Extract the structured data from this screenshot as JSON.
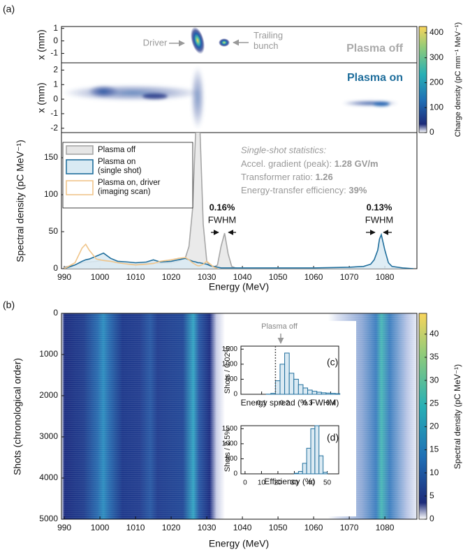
{
  "panel_labels": [
    "(a)",
    "(b)",
    "(c)",
    "(d)"
  ],
  "chart_data": [
    {
      "type": "heatmap",
      "label": "Plasma off",
      "ylabel": "x (mm)",
      "ylim": [
        -1.75,
        1.15
      ],
      "yticks": [
        -1,
        0,
        1
      ],
      "annotations": [
        "Driver",
        "Trailing bunch"
      ],
      "colorbar": {
        "label": "Charge density (pC mm⁻¹ MeV⁻¹)",
        "lim": [
          0,
          425
        ],
        "ticks": [
          0,
          100,
          200,
          300,
          400
        ]
      }
    },
    {
      "type": "heatmap",
      "label": "Plasma on",
      "ylabel": "x (mm)",
      "ylim": [
        -2.3,
        2.5
      ],
      "yticks": [
        -2,
        -1,
        0,
        1,
        2
      ]
    },
    {
      "type": "line",
      "xlabel": "Energy (MeV)",
      "ylabel": "Spectral density (pC MeV⁻¹)",
      "xlim": [
        989.2,
        1089
      ],
      "xticks": [
        990,
        1000,
        1010,
        1020,
        1030,
        1040,
        1050,
        1060,
        1070,
        1080
      ],
      "ylim": [
        0,
        184
      ],
      "yticks": [
        0,
        50,
        100,
        150
      ],
      "legend": "upper left",
      "x": [
        990,
        993,
        995,
        996,
        997,
        999,
        1001,
        1003,
        1005,
        1008,
        1010,
        1013,
        1015,
        1017,
        1020,
        1022,
        1024,
        1025,
        1026,
        1027,
        1027.5,
        1028,
        1029,
        1030,
        1031,
        1032,
        1033,
        1034,
        1035,
        1036,
        1037,
        1038,
        1040,
        1050,
        1060,
        1070,
        1074,
        1076,
        1077,
        1078,
        1078.5,
        1079,
        1080,
        1081,
        1082,
        1085,
        1088
      ],
      "series": [
        {
          "name": "Plasma off",
          "color": "#a6a6a6",
          "fill": "#e6e6e6",
          "values": [
            2,
            5,
            8,
            9,
            9,
            10,
            12,
            10,
            8,
            6,
            6,
            7,
            8,
            7,
            8,
            10,
            15,
            30,
            80,
            200,
            250,
            200,
            60,
            10,
            3,
            2,
            5,
            30,
            48,
            20,
            3,
            1,
            0,
            0,
            0,
            0,
            0,
            0,
            0,
            0,
            0,
            0,
            0,
            0,
            0,
            0,
            0
          ]
        },
        {
          "name": "Plasma on (single shot)",
          "color": "#1f6e9c",
          "fill": "#d9eaf3",
          "values": [
            0,
            5,
            10,
            12,
            13,
            17,
            21,
            14,
            10,
            9,
            8,
            9,
            12,
            9,
            10,
            12,
            14,
            12,
            10,
            9,
            8,
            8,
            7,
            6,
            4,
            3,
            2,
            1,
            1,
            1,
            1,
            1,
            1,
            1,
            1,
            2,
            3,
            6,
            12,
            25,
            40,
            46,
            25,
            8,
            3,
            1,
            0
          ]
        },
        {
          "name": "Plasma on, driver (imaging scan)",
          "color": "#f0c58a",
          "fill": null,
          "values": [
            0,
            8,
            28,
            33,
            25,
            13,
            11,
            10,
            8,
            6,
            5,
            6,
            7,
            10,
            12,
            14,
            15,
            12,
            8,
            5,
            4,
            4,
            6,
            10,
            6,
            2,
            0,
            null,
            null,
            null,
            null,
            null,
            null,
            null,
            null,
            null,
            null,
            null,
            null,
            null,
            null,
            null,
            null,
            null,
            null,
            null,
            null
          ]
        }
      ],
      "fwhm_labels": [
        {
          "value": "0.16%",
          "unit": "FWHM"
        },
        {
          "value": "0.13%",
          "unit": "FWHM"
        }
      ],
      "stats_title": "Single-shot statistics:",
      "stats": [
        {
          "label": "Accel. gradient (peak): ",
          "value": "1.28 GV/m"
        },
        {
          "label": "Transformer ratio: ",
          "value": "1.26"
        },
        {
          "label": "Energy-transfer efficiency: ",
          "value": "39%"
        }
      ]
    },
    {
      "type": "heatmap",
      "xlabel": "Energy (MeV)",
      "ylabel": "Shots (chronological order)",
      "xlim": [
        989.2,
        1089
      ],
      "xticks": [
        990,
        1000,
        1010,
        1020,
        1030,
        1040,
        1050,
        1060,
        1070,
        1080
      ],
      "ylim": [
        0,
        5000
      ],
      "yticks": [
        0,
        1000,
        2000,
        3000,
        4000,
        5000
      ],
      "colorbar": {
        "label": "Spectral density (pC MeV⁻¹)",
        "lim": [
          0,
          44.5
        ],
        "ticks": [
          0,
          5,
          10,
          15,
          20,
          25,
          30,
          35,
          40
        ]
      }
    },
    {
      "type": "histogram",
      "xlabel": "Energy spread (% FWHM)",
      "ylabel": "Shots / 0.02%",
      "xlim": [
        0.01,
        0.435
      ],
      "xticks": [
        0.1,
        0.2,
        0.3,
        0.4
      ],
      "ylim": [
        0,
        1600
      ],
      "yticks": [
        0,
        500,
        1000,
        1500
      ],
      "bins": [
        0.12,
        0.14,
        0.16,
        0.18,
        0.2,
        0.22,
        0.24,
        0.26,
        0.28,
        0.3,
        0.32,
        0.34,
        0.36,
        0.38,
        0.4,
        0.42,
        0.44
      ],
      "counts": [
        5,
        30,
        450,
        1000,
        1370,
        700,
        500,
        320,
        210,
        140,
        100,
        70,
        50,
        40,
        30,
        20
      ],
      "color": "#1f6e9c",
      "marker": {
        "value": 0.16,
        "label": "Plasma off"
      }
    },
    {
      "type": "histogram",
      "xlabel": "Efficiency (%)",
      "ylabel": "Shots / 2.5%",
      "xlim": [
        -2.5,
        57
      ],
      "xticks": [
        0,
        10,
        20,
        30,
        40,
        50
      ],
      "ylim": [
        0,
        1600
      ],
      "yticks": [
        0,
        500,
        1000,
        1500
      ],
      "bins": [
        30,
        32.5,
        35,
        37.5,
        40,
        42.5,
        45,
        47.5,
        50
      ],
      "counts": [
        20,
        80,
        350,
        850,
        1500,
        1600,
        600,
        50
      ],
      "color": "#1f6e9c"
    }
  ]
}
